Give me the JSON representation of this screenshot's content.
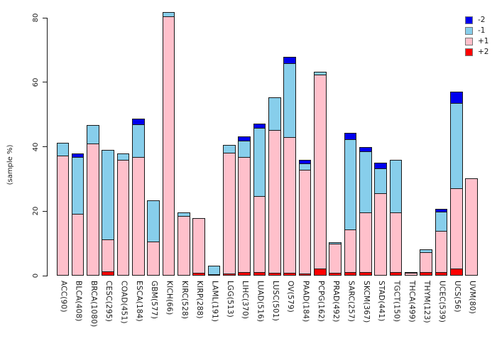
{
  "chart_data": {
    "type": "bar",
    "stacked": true,
    "title": "",
    "xlabel": "",
    "ylabel": "(sample %)",
    "ylim": [
      0,
      80
    ],
    "yticks": [
      0,
      20,
      40,
      60,
      80
    ],
    "grid": false,
    "legend_position": "top-right",
    "stack_order_bottom_to_top": [
      "+2",
      "+1",
      "-1",
      "-2"
    ],
    "categories": [
      "ACC(90)",
      "BLCA(408)",
      "BRCA(1080)",
      "CESC(295)",
      "COAD(451)",
      "ESCA(184)",
      "GBM(577)",
      "KICH(66)",
      "KIRC(528)",
      "KIRP(288)",
      "LAML(191)",
      "LGG(513)",
      "LIHC(370)",
      "LUAD(516)",
      "LUSC(501)",
      "OV(579)",
      "PAAD(184)",
      "PCPG(162)",
      "PRAD(492)",
      "SARC(257)",
      "SKCM(367)",
      "STAD(441)",
      "TGCT(150)",
      "THCA(499)",
      "THYM(123)",
      "UCEC(539)",
      "UCS(56)",
      "UVM(80)"
    ],
    "series": [
      {
        "name": "+2",
        "color": "#FF0000",
        "values": [
          0,
          0,
          0,
          1.0,
          0,
          0,
          0,
          0,
          0,
          0.6,
          0,
          0.4,
          0.8,
          0.8,
          0.7,
          0.6,
          0.5,
          2.0,
          0.7,
          0.8,
          0.9,
          0,
          0.8,
          0,
          0.8,
          0.8,
          2.0,
          0
        ]
      },
      {
        "name": "+1",
        "color": "#FFC0CB",
        "values": [
          37.0,
          18.9,
          40.7,
          10.1,
          35.7,
          36.5,
          10.3,
          80.3,
          18.3,
          17.2,
          0.3,
          37.4,
          35.8,
          23.7,
          44.2,
          42.1,
          32.2,
          60.1,
          8.9,
          13.2,
          18.5,
          25.3,
          18.5,
          0.7,
          6.2,
          12.9,
          24.9,
          30.2
        ]
      },
      {
        "name": "-1",
        "color": "#87CEEB",
        "values": [
          4.3,
          17.7,
          6.1,
          27.8,
          2.1,
          10.3,
          13.0,
          1.5,
          1.4,
          0,
          2.8,
          2.7,
          5.0,
          21.2,
          10.5,
          23.0,
          1.9,
          1.1,
          0.8,
          28.2,
          18.9,
          7.7,
          16.7,
          0.5,
          1.2,
          5.9,
          26.5,
          0
        ]
      },
      {
        "name": "-2",
        "color": "#0000EE",
        "values": [
          0,
          1.4,
          0,
          0,
          0,
          2.0,
          0,
          0,
          0,
          0,
          0,
          0,
          1.5,
          1.4,
          0,
          2.1,
          1.4,
          0,
          0,
          2.0,
          1.5,
          2.0,
          0,
          0,
          0,
          1.1,
          3.7,
          0
        ]
      }
    ],
    "legend": {
      "entries": [
        {
          "label": "-2",
          "color": "#0000EE"
        },
        {
          "label": "-1",
          "color": "#87CEEB"
        },
        {
          "label": "+1",
          "color": "#FFC0CB"
        },
        {
          "label": "+2",
          "color": "#FF0000"
        }
      ]
    }
  },
  "style": {
    "axis_color": "#1a1a1a",
    "bar_border_color": "#1a1a1a",
    "background": "#ffffff"
  }
}
